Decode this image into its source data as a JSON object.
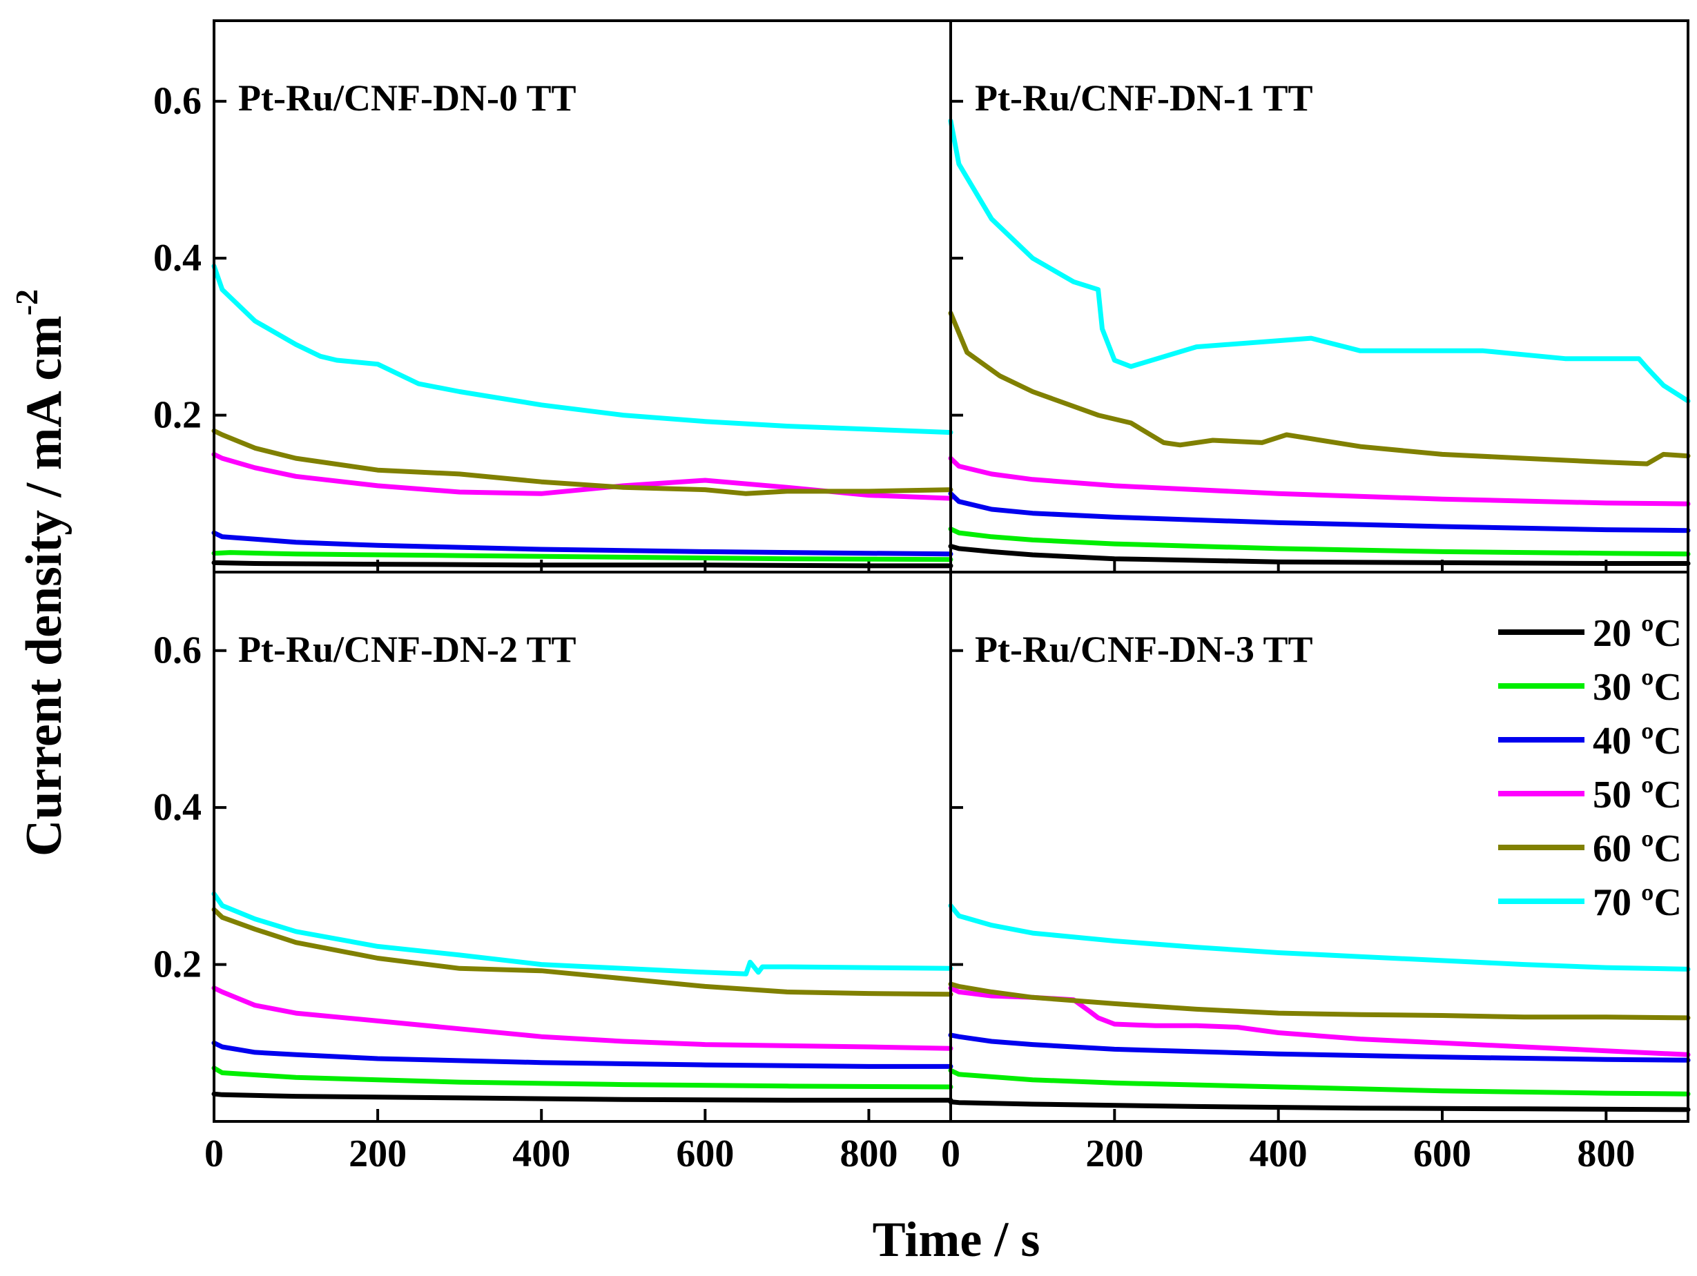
{
  "figure": {
    "ylabel": "Current density / mA cm",
    "ylabel_sup": "-2",
    "xlabel": "Time / s",
    "legend": [
      {
        "label": "20 ºC",
        "color": "#000000"
      },
      {
        "label": "30 ºC",
        "color": "#00ee00"
      },
      {
        "label": "40 ºC",
        "color": "#0000ee"
      },
      {
        "label": "50 ºC",
        "color": "#ff00ff"
      },
      {
        "label": "60 ºC",
        "color": "#808000"
      },
      {
        "label": "70 ºC",
        "color": "#00ffff"
      }
    ]
  },
  "chart_data": [
    {
      "type": "line",
      "title": "Pt-Ru/CNF-DN-0 TT",
      "xlabel": "Time / s",
      "ylabel": "Current density / mA cm-2",
      "xlim": [
        0,
        900
      ],
      "ylim": [
        0,
        0.7
      ],
      "x_ticks": [
        "0",
        "200",
        "400",
        "600",
        "800"
      ],
      "y_ticks": [
        "0.2",
        "0.4",
        "0.6"
      ],
      "series": [
        {
          "name": "20 ºC",
          "color": "#000000",
          "x": [
            0,
            50,
            200,
            400,
            600,
            800,
            900
          ],
          "y": [
            0.012,
            0.011,
            0.01,
            0.009,
            0.009,
            0.008,
            0.008
          ]
        },
        {
          "name": "30 ºC",
          "color": "#00ee00",
          "x": [
            0,
            20,
            100,
            300,
            500,
            700,
            900
          ],
          "y": [
            0.024,
            0.025,
            0.023,
            0.021,
            0.019,
            0.017,
            0.016
          ]
        },
        {
          "name": "40 ºC",
          "color": "#0000ee",
          "x": [
            0,
            10,
            50,
            100,
            200,
            400,
            600,
            800,
            900
          ],
          "y": [
            0.05,
            0.045,
            0.042,
            0.038,
            0.034,
            0.029,
            0.026,
            0.024,
            0.023
          ]
        },
        {
          "name": "50 ºC",
          "color": "#ff00ff",
          "x": [
            0,
            10,
            50,
            100,
            200,
            300,
            400,
            500,
            600,
            700,
            800,
            900
          ],
          "y": [
            0.15,
            0.145,
            0.133,
            0.122,
            0.11,
            0.102,
            0.1,
            0.11,
            0.117,
            0.108,
            0.098,
            0.094
          ]
        },
        {
          "name": "60 ºC",
          "color": "#808000",
          "x": [
            0,
            10,
            50,
            100,
            200,
            300,
            400,
            500,
            600,
            650,
            700,
            800,
            900
          ],
          "y": [
            0.18,
            0.175,
            0.158,
            0.145,
            0.13,
            0.125,
            0.115,
            0.108,
            0.105,
            0.1,
            0.103,
            0.103,
            0.105
          ]
        },
        {
          "name": "70 ºC",
          "color": "#00ffff",
          "x": [
            0,
            10,
            50,
            100,
            130,
            150,
            200,
            250,
            300,
            400,
            500,
            600,
            700,
            800,
            900
          ],
          "y": [
            0.39,
            0.36,
            0.32,
            0.29,
            0.275,
            0.27,
            0.265,
            0.24,
            0.23,
            0.213,
            0.2,
            0.192,
            0.186,
            0.182,
            0.178
          ]
        }
      ]
    },
    {
      "type": "line",
      "title": "Pt-Ru/CNF-DN-1 TT",
      "xlabel": "Time / s",
      "ylabel": "Current density / mA cm-2",
      "xlim": [
        0,
        900
      ],
      "ylim": [
        0,
        0.7
      ],
      "x_ticks": [
        "0",
        "200",
        "400",
        "600",
        "800"
      ],
      "y_ticks": [
        "0.2",
        "0.4",
        "0.6"
      ],
      "series": [
        {
          "name": "20 ºC",
          "color": "#000000",
          "x": [
            0,
            10,
            50,
            100,
            200,
            400,
            600,
            800,
            900
          ],
          "y": [
            0.033,
            0.03,
            0.026,
            0.022,
            0.017,
            0.013,
            0.012,
            0.011,
            0.011
          ]
        },
        {
          "name": "30 ºC",
          "color": "#00ee00",
          "x": [
            0,
            10,
            50,
            100,
            200,
            400,
            600,
            800,
            900
          ],
          "y": [
            0.055,
            0.05,
            0.045,
            0.041,
            0.036,
            0.03,
            0.026,
            0.024,
            0.023
          ]
        },
        {
          "name": "40 ºC",
          "color": "#0000ee",
          "x": [
            0,
            10,
            50,
            100,
            200,
            400,
            600,
            800,
            900
          ],
          "y": [
            0.1,
            0.09,
            0.08,
            0.075,
            0.07,
            0.063,
            0.058,
            0.054,
            0.053
          ]
        },
        {
          "name": "50 ºC",
          "color": "#ff00ff",
          "x": [
            0,
            10,
            50,
            100,
            200,
            400,
            600,
            800,
            900
          ],
          "y": [
            0.145,
            0.135,
            0.125,
            0.118,
            0.11,
            0.1,
            0.093,
            0.088,
            0.087
          ]
        },
        {
          "name": "60 ºC",
          "color": "#808000",
          "x": [
            0,
            20,
            60,
            100,
            180,
            220,
            260,
            280,
            320,
            380,
            410,
            500,
            600,
            700,
            800,
            850,
            870,
            900
          ],
          "y": [
            0.33,
            0.28,
            0.25,
            0.23,
            0.2,
            0.19,
            0.165,
            0.162,
            0.168,
            0.165,
            0.175,
            0.16,
            0.15,
            0.145,
            0.14,
            0.138,
            0.15,
            0.148
          ]
        },
        {
          "name": "70 ºC",
          "color": "#00ffff",
          "x": [
            0,
            10,
            50,
            100,
            150,
            180,
            185,
            200,
            220,
            300,
            440,
            500,
            650,
            750,
            800,
            840,
            850,
            870,
            900
          ],
          "y": [
            0.575,
            0.52,
            0.45,
            0.4,
            0.37,
            0.36,
            0.31,
            0.27,
            0.262,
            0.287,
            0.298,
            0.282,
            0.282,
            0.272,
            0.272,
            0.272,
            0.26,
            0.238,
            0.218
          ]
        }
      ]
    },
    {
      "type": "line",
      "title": "Pt-Ru/CNF-DN-2 TT",
      "xlabel": "Time / s",
      "ylabel": "Current density / mA cm-2",
      "xlim": [
        0,
        900
      ],
      "ylim": [
        0,
        0.7
      ],
      "x_ticks": [
        "0",
        "200",
        "400",
        "600",
        "800"
      ],
      "y_ticks": [
        "0.2",
        "0.4",
        "0.6"
      ],
      "series": [
        {
          "name": "20 ºC",
          "color": "#000000",
          "x": [
            0,
            10,
            100,
            300,
            500,
            700,
            900
          ],
          "y": [
            0.035,
            0.034,
            0.032,
            0.03,
            0.028,
            0.027,
            0.027
          ]
        },
        {
          "name": "30 ºC",
          "color": "#00ee00",
          "x": [
            0,
            10,
            100,
            300,
            500,
            700,
            900
          ],
          "y": [
            0.068,
            0.062,
            0.056,
            0.05,
            0.047,
            0.045,
            0.044
          ]
        },
        {
          "name": "40 ºC",
          "color": "#0000ee",
          "x": [
            0,
            10,
            50,
            100,
            200,
            400,
            600,
            800,
            900
          ],
          "y": [
            0.1,
            0.095,
            0.088,
            0.085,
            0.08,
            0.075,
            0.072,
            0.07,
            0.07
          ]
        },
        {
          "name": "50 ºC",
          "color": "#ff00ff",
          "x": [
            0,
            10,
            50,
            100,
            200,
            300,
            400,
            500,
            600,
            800,
            900
          ],
          "y": [
            0.17,
            0.165,
            0.148,
            0.138,
            0.128,
            0.118,
            0.108,
            0.102,
            0.098,
            0.095,
            0.093
          ]
        },
        {
          "name": "60 ºC",
          "color": "#808000",
          "x": [
            0,
            10,
            50,
            100,
            200,
            300,
            400,
            500,
            600,
            700,
            800,
            900
          ],
          "y": [
            0.27,
            0.26,
            0.245,
            0.228,
            0.208,
            0.195,
            0.192,
            0.182,
            0.172,
            0.165,
            0.163,
            0.162
          ]
        },
        {
          "name": "70 ºC",
          "color": "#00ffff",
          "x": [
            0,
            10,
            50,
            100,
            200,
            300,
            400,
            500,
            600,
            650,
            655,
            665,
            670,
            700,
            800,
            900
          ],
          "y": [
            0.29,
            0.275,
            0.258,
            0.242,
            0.223,
            0.212,
            0.2,
            0.195,
            0.19,
            0.188,
            0.203,
            0.19,
            0.197,
            0.197,
            0.196,
            0.195
          ]
        }
      ]
    },
    {
      "type": "line",
      "title": "Pt-Ru/CNF-DN-3 TT",
      "xlabel": "Time / s",
      "ylabel": "Current density / mA cm-2",
      "xlim": [
        0,
        900
      ],
      "ylim": [
        0,
        0.7
      ],
      "x_ticks": [
        "0",
        "200",
        "400",
        "600",
        "800"
      ],
      "y_ticks": [
        "0.2",
        "0.4",
        "0.6"
      ],
      "legend_position": "right",
      "series": [
        {
          "name": "20 ºC",
          "color": "#000000",
          "x": [
            0,
            10,
            100,
            300,
            500,
            700,
            900
          ],
          "y": [
            0.025,
            0.024,
            0.022,
            0.019,
            0.017,
            0.016,
            0.015
          ]
        },
        {
          "name": "30 ºC",
          "color": "#00ee00",
          "x": [
            0,
            10,
            100,
            200,
            400,
            600,
            800,
            900
          ],
          "y": [
            0.065,
            0.06,
            0.053,
            0.049,
            0.044,
            0.039,
            0.036,
            0.035
          ]
        },
        {
          "name": "40 ºC",
          "color": "#0000ee",
          "x": [
            0,
            10,
            50,
            100,
            200,
            400,
            600,
            800,
            900
          ],
          "y": [
            0.11,
            0.108,
            0.102,
            0.098,
            0.092,
            0.086,
            0.082,
            0.079,
            0.078
          ]
        },
        {
          "name": "50 ºC",
          "color": "#ff00ff",
          "x": [
            0,
            10,
            50,
            100,
            150,
            170,
            180,
            200,
            250,
            300,
            350,
            400,
            500,
            600,
            700,
            800,
            900
          ],
          "y": [
            0.17,
            0.165,
            0.16,
            0.158,
            0.155,
            0.14,
            0.132,
            0.124,
            0.122,
            0.122,
            0.12,
            0.113,
            0.105,
            0.1,
            0.095,
            0.09,
            0.085
          ]
        },
        {
          "name": "60 ºC",
          "color": "#808000",
          "x": [
            0,
            10,
            50,
            100,
            200,
            300,
            400,
            500,
            600,
            700,
            800,
            900
          ],
          "y": [
            0.175,
            0.172,
            0.165,
            0.158,
            0.15,
            0.143,
            0.138,
            0.136,
            0.135,
            0.133,
            0.133,
            0.132
          ]
        },
        {
          "name": "70 ºC",
          "color": "#00ffff",
          "x": [
            0,
            10,
            50,
            100,
            200,
            300,
            400,
            500,
            600,
            700,
            800,
            900
          ],
          "y": [
            0.275,
            0.262,
            0.25,
            0.24,
            0.23,
            0.222,
            0.215,
            0.21,
            0.205,
            0.2,
            0.196,
            0.194
          ]
        }
      ]
    }
  ]
}
